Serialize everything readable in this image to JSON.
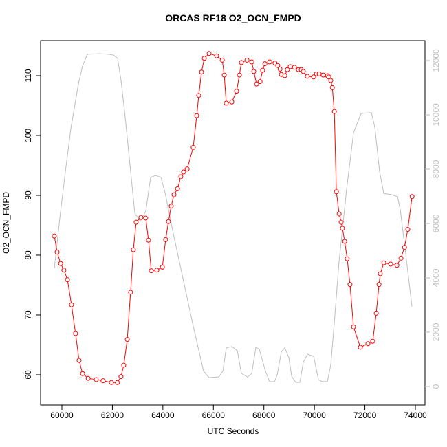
{
  "chart_data": {
    "type": "line",
    "title": "ORCAS RF18 O2_OCN_FMPD",
    "x_label": "UTC Seconds",
    "y_label": "O2_OCN_FMPD",
    "xlim": [
      59156,
      74381
    ],
    "xticks": [
      60000,
      62000,
      64000,
      66000,
      68000,
      70000,
      72000,
      74000
    ],
    "ylim": [
      54.94,
      115.86
    ],
    "yticks": [
      60,
      70,
      80,
      90,
      100,
      110
    ],
    "y2lim": [
      -684,
      12734
    ],
    "y2ticks": [
      0,
      2000,
      4000,
      6000,
      8000,
      10000,
      12000
    ],
    "series": [
      {
        "color": "#ff0000",
        "marker": "circle",
        "x": [
          59700,
          59810,
          59950,
          60080,
          60220,
          60380,
          60540,
          60680,
          60820,
          61040,
          61360,
          61630,
          61960,
          62200,
          62340,
          62450,
          62590,
          62720,
          62830,
          62940,
          63130,
          63320,
          63430,
          63540,
          63760,
          63980,
          64110,
          64220,
          64330,
          64440,
          64580,
          64710,
          64820,
          64960,
          65200,
          65340,
          65420,
          65530,
          65640,
          65830,
          66130,
          66350,
          66430,
          66510,
          66730,
          66920,
          67030,
          67110,
          67330,
          67520,
          67600,
          67710,
          67850,
          67950,
          68040,
          68230,
          68440,
          68550,
          68640,
          68690,
          68830,
          68930,
          69040,
          69210,
          69370,
          69480,
          69560,
          69720,
          69970,
          70080,
          70190,
          70350,
          70520,
          70570,
          70650,
          70710,
          70790,
          70870,
          70980,
          71060,
          71110,
          71200,
          71300,
          71410,
          71550,
          71820,
          72120,
          72310,
          72450,
          72560,
          72610,
          72750,
          73020,
          73270,
          73430,
          73570,
          73700,
          73870
        ],
        "values": [
          83.2,
          80.5,
          78.6,
          77.5,
          75.9,
          71.7,
          66.9,
          62.4,
          60.2,
          59.4,
          59.2,
          59.0,
          58.7,
          58.7,
          59.7,
          61.6,
          65.9,
          73.8,
          80.9,
          85.5,
          86.3,
          86.2,
          82.5,
          77.4,
          77.5,
          78.0,
          82.6,
          85.6,
          88.2,
          90.1,
          91.1,
          93.1,
          93.9,
          94.4,
          98.0,
          103.3,
          106.7,
          110.6,
          112.9,
          113.7,
          113.3,
          112.6,
          110.1,
          105.4,
          105.6,
          107.4,
          110.1,
          112.2,
          112.6,
          112.3,
          110.7,
          108.6,
          109.0,
          110.9,
          112.0,
          112.3,
          112.1,
          111.7,
          111.1,
          110.2,
          110.0,
          111.0,
          111.5,
          111.4,
          111.0,
          111.0,
          110.7,
          109.9,
          109.8,
          110.3,
          110.3,
          110.1,
          110.0,
          109.8,
          109.2,
          108.0,
          104.0,
          90.6,
          86.9,
          85.5,
          84.5,
          82.3,
          79.4,
          75.1,
          68.0,
          64.6,
          65.2,
          65.6,
          70.3,
          75.1,
          76.9,
          78.7,
          78.5,
          78.3,
          79.5,
          81.3,
          84.3,
          89.8
        ]
      },
      {
        "color": "#bebebe",
        "axis": "y2",
        "x": [
          59700,
          59918,
          60136,
          60354,
          60654,
          60817,
          61008,
          61498,
          61852,
          62043,
          62206,
          62343,
          62506,
          62724,
          62887,
          63105,
          63323,
          63514,
          63705,
          63923,
          64086,
          64358,
          64767,
          65176,
          65611,
          65829,
          66211,
          66374,
          66510,
          66728,
          66946,
          67110,
          67355,
          67518,
          67682,
          67818,
          68063,
          68226,
          68417,
          68526,
          68690,
          68826,
          68989,
          69098,
          69262,
          69425,
          69561,
          69725,
          69970,
          70161,
          70297,
          70515,
          70651,
          70787,
          70978,
          71277,
          71550,
          71849,
          72258,
          72394,
          72585,
          72748,
          73075,
          73293,
          73402,
          73620,
          73865
        ],
        "values": [
          4350,
          6200,
          7900,
          9490,
          11140,
          11800,
          12230,
          12250,
          12230,
          12200,
          12080,
          11270,
          9920,
          7900,
          6380,
          6080,
          6450,
          7700,
          7770,
          7700,
          7140,
          5870,
          4100,
          2330,
          560,
          330,
          350,
          560,
          1420,
          1470,
          1320,
          480,
          350,
          480,
          1440,
          1370,
          560,
          180,
          180,
          430,
          1270,
          1420,
          1060,
          380,
          150,
          150,
          890,
          1190,
          1110,
          250,
          180,
          180,
          810,
          2330,
          4610,
          7270,
          9340,
          10050,
          10080,
          9540,
          7900,
          7110,
          7060,
          6990,
          6510,
          4860,
          2940
        ]
      }
    ]
  }
}
